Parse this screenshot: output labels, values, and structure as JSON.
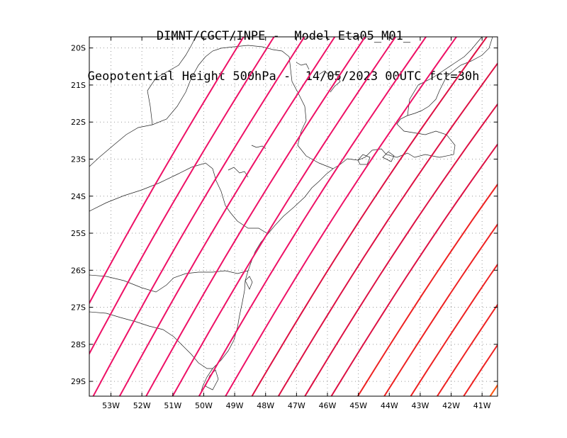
{
  "header": {
    "line1": "DIMNT/CGCT/INPE -  Model Eta05_M01_",
    "line2": "Geopotential Height 500hPa -  14/05/2023 00UTC fct=30h"
  },
  "map": {
    "lon_range": [
      -53.7,
      -40.5
    ],
    "lat_range": [
      -29.4,
      -19.7
    ],
    "y_axis_labels": [
      "20S",
      "21S",
      "22S",
      "23S",
      "24S",
      "25S",
      "26S",
      "27S",
      "28S",
      "29S"
    ],
    "x_axis_labels": [
      "53W",
      "52W",
      "51W",
      "50W",
      "49W",
      "48W",
      "47W",
      "46W",
      "45W",
      "44W",
      "43W",
      "42W",
      "41W"
    ],
    "gridlines": "dotted every 1 degree",
    "contour_colors": [
      "#ee1166",
      "#dd1144",
      "#ee2222",
      "#ff5511"
    ]
  }
}
